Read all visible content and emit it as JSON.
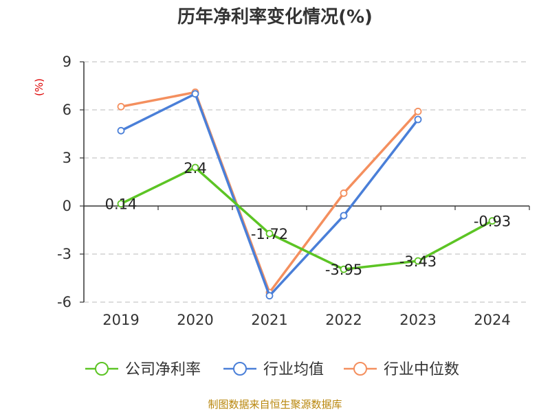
{
  "chart_data": {
    "type": "line",
    "title": "历年净利率变化情况(%)",
    "unit_label": "(%)",
    "source": "制图数据来自恒生聚源数据库",
    "categories": [
      "2019",
      "2020",
      "2021",
      "2022",
      "2023",
      "2024"
    ],
    "ylim": [
      -6,
      9
    ],
    "yticks": [
      9,
      6,
      3,
      0,
      -3,
      -6
    ],
    "grid": true,
    "legend_position": "bottom",
    "series": [
      {
        "name": "公司净利率",
        "color": "#5cc424",
        "values": [
          0.14,
          2.4,
          -1.72,
          -3.95,
          -3.43,
          -0.93
        ],
        "data_labels": [
          "0.14",
          "2.4",
          "-1.72",
          "-3.95",
          "-3.43",
          "-0.93"
        ]
      },
      {
        "name": "行业均值",
        "color": "#4a7fd8",
        "values": [
          4.7,
          7.0,
          -5.6,
          -0.6,
          5.4,
          null
        ]
      },
      {
        "name": "行业中位数",
        "color": "#f48f5e",
        "values": [
          6.2,
          7.1,
          -5.4,
          0.8,
          5.9,
          null
        ]
      }
    ],
    "unit_color": "#dd0000"
  }
}
